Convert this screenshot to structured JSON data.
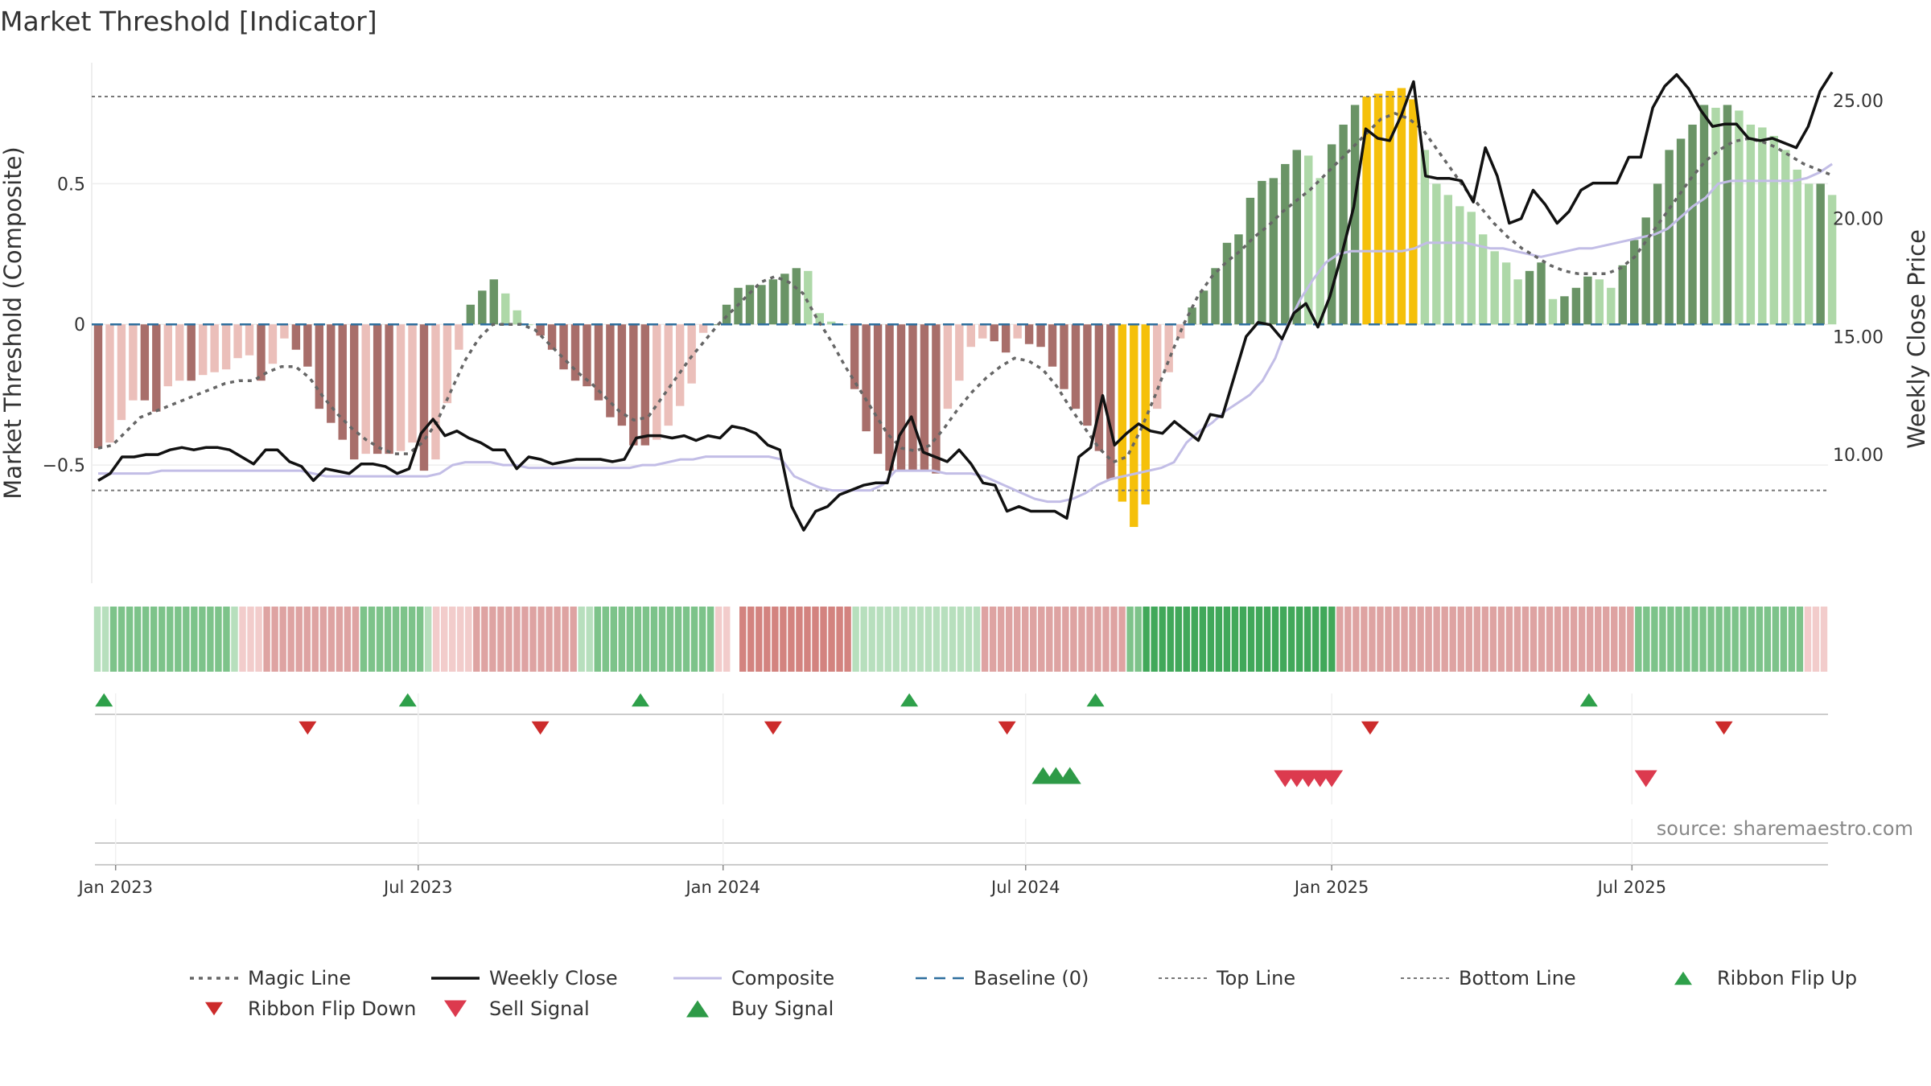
{
  "title": "Market Threshold [Indicator]",
  "source": "source: sharemaestro.com",
  "colors": {
    "pos_strong": "#6a9466",
    "pos_light": "#aed8a8",
    "neg_strong": "#a86e6a",
    "neg_light": "#ebbfba",
    "extreme": "#f5c00a",
    "magic": "#666666",
    "close": "#111111",
    "composite": "#c2bde6",
    "baseline": "#2e6f9e",
    "thresholds": "#777777",
    "ribbon_up": "#2ea04a",
    "flip_down": "#cc2b2b",
    "sell": "#dc3a4e",
    "buy": "#2e9a47"
  },
  "chart_data": {
    "type": "bar",
    "title": "Market Threshold [Indicator]",
    "ylabel": "Market Threshold (Composite)",
    "y2label": "Weekly Close Price",
    "ylim": [
      -0.92,
      0.93
    ],
    "y2lim": [
      4.55,
      26.6
    ],
    "yticks": [
      {
        "v": 0.5,
        "label": "0.5"
      },
      {
        "v": 0,
        "label": "0"
      },
      {
        "v": -0.5,
        "label": "−0.5"
      }
    ],
    "y2ticks": [
      {
        "v": 25,
        "label": "25.00"
      },
      {
        "v": 20,
        "label": "20.00"
      },
      {
        "v": 15,
        "label": "15.00"
      },
      {
        "v": 10,
        "label": "10.00"
      }
    ],
    "x_start": "2022-12-16",
    "x_step_days": 7,
    "xticks": [
      {
        "week": 1.5,
        "label": "Jan 2023"
      },
      {
        "week": 27.5,
        "label": "Jul 2023"
      },
      {
        "week": 53.7,
        "label": "Jan 2024"
      },
      {
        "week": 79.7,
        "label": "Jul 2024"
      },
      {
        "week": 106,
        "label": "Jan 2025"
      },
      {
        "week": 131.8,
        "label": "Jul 2025"
      }
    ],
    "top_line": 0.81,
    "bottom_line": -0.59,
    "baseline": 0,
    "composite_bars": [
      -0.44,
      -0.42,
      -0.34,
      -0.27,
      -0.27,
      -0.31,
      -0.22,
      -0.2,
      -0.2,
      -0.18,
      -0.17,
      -0.16,
      -0.12,
      -0.11,
      -0.2,
      -0.14,
      -0.05,
      -0.09,
      -0.15,
      -0.3,
      -0.35,
      -0.41,
      -0.48,
      -0.46,
      -0.46,
      -0.46,
      -0.45,
      -0.42,
      -0.52,
      -0.48,
      -0.28,
      -0.09,
      0.07,
      0.12,
      0.16,
      0.11,
      0.05,
      0,
      -0.04,
      -0.09,
      -0.16,
      -0.2,
      -0.22,
      -0.27,
      -0.33,
      -0.36,
      -0.43,
      -0.43,
      -0.41,
      -0.36,
      -0.29,
      -0.21,
      -0.03,
      0,
      0.07,
      0.13,
      0.14,
      0.14,
      0.16,
      0.18,
      0.2,
      0.19,
      0.04,
      0.01,
      0,
      -0.23,
      -0.38,
      -0.46,
      -0.52,
      -0.52,
      -0.52,
      -0.52,
      -0.53,
      -0.3,
      -0.2,
      -0.08,
      -0.05,
      -0.06,
      -0.1,
      -0.05,
      -0.07,
      -0.08,
      -0.15,
      -0.23,
      -0.3,
      -0.36,
      -0.45,
      -0.55,
      -0.63,
      -0.72,
      -0.64,
      -0.3,
      -0.17,
      -0.05,
      0.06,
      0.12,
      0.2,
      0.29,
      0.32,
      0.45,
      0.51,
      0.52,
      0.57,
      0.62,
      0.6,
      0.52,
      0.64,
      0.71,
      0.78,
      0.81,
      0.82,
      0.83,
      0.84,
      0.8,
      0.62,
      0.5,
      0.46,
      0.42,
      0.4,
      0.32,
      0.26,
      0.22,
      0.16,
      0.19,
      0.22,
      0.09,
      0.1,
      0.13,
      0.17,
      0.16,
      0.13,
      0.21,
      0.3,
      0.38,
      0.5,
      0.62,
      0.66,
      0.71,
      0.78,
      0.77,
      0.78,
      0.76,
      0.71,
      0.7,
      0.67,
      0.62,
      0.55,
      0.5,
      0.5,
      0.46
    ],
    "magic_line": [
      -0.44,
      -0.43,
      -0.38,
      -0.33,
      -0.31,
      -0.29,
      -0.27,
      -0.25,
      -0.23,
      -0.21,
      -0.2,
      -0.2,
      -0.17,
      -0.15,
      -0.15,
      -0.19,
      -0.26,
      -0.32,
      -0.37,
      -0.41,
      -0.44,
      -0.46,
      -0.46,
      -0.42,
      -0.35,
      -0.24,
      -0.13,
      -0.05,
      0.0,
      0.0,
      0.0,
      -0.02,
      -0.07,
      -0.12,
      -0.17,
      -0.21,
      -0.26,
      -0.31,
      -0.34,
      -0.33,
      -0.26,
      -0.19,
      -0.12,
      -0.06,
      0.0,
      0.05,
      0.1,
      0.15,
      0.17,
      0.15,
      0.11,
      0.02,
      -0.06,
      -0.15,
      -0.23,
      -0.31,
      -0.39,
      -0.44,
      -0.45,
      -0.43,
      -0.37,
      -0.3,
      -0.24,
      -0.19,
      -0.15,
      -0.12,
      -0.13,
      -0.16,
      -0.22,
      -0.3,
      -0.37,
      -0.44,
      -0.49,
      -0.47,
      -0.37,
      -0.25,
      -0.12,
      0.0,
      0.1,
      0.17,
      0.22,
      0.26,
      0.31,
      0.35,
      0.4,
      0.44,
      0.48,
      0.53,
      0.58,
      0.63,
      0.68,
      0.73,
      0.75,
      0.73,
      0.69,
      0.62,
      0.55,
      0.48,
      0.42,
      0.36,
      0.31,
      0.27,
      0.24,
      0.21,
      0.19,
      0.18,
      0.18,
      0.18,
      0.2,
      0.24,
      0.31,
      0.38,
      0.45,
      0.52,
      0.58,
      0.62,
      0.65,
      0.66,
      0.65,
      0.63,
      0.6,
      0.57,
      0.55,
      0.53
    ],
    "composite_line": [
      -0.53,
      -0.53,
      -0.53,
      -0.53,
      -0.53,
      -0.52,
      -0.52,
      -0.52,
      -0.52,
      -0.52,
      -0.52,
      -0.52,
      -0.52,
      -0.52,
      -0.52,
      -0.52,
      -0.52,
      -0.53,
      -0.54,
      -0.54,
      -0.54,
      -0.54,
      -0.54,
      -0.54,
      -0.54,
      -0.54,
      -0.54,
      -0.53,
      -0.5,
      -0.49,
      -0.49,
      -0.49,
      -0.5,
      -0.5,
      -0.51,
      -0.51,
      -0.51,
      -0.51,
      -0.51,
      -0.51,
      -0.51,
      -0.51,
      -0.51,
      -0.5,
      -0.5,
      -0.49,
      -0.48,
      -0.48,
      -0.47,
      -0.47,
      -0.47,
      -0.47,
      -0.47,
      -0.47,
      -0.48,
      -0.54,
      -0.56,
      -0.58,
      -0.59,
      -0.59,
      -0.59,
      -0.59,
      -0.57,
      -0.52,
      -0.52,
      -0.52,
      -0.52,
      -0.53,
      -0.53,
      -0.53,
      -0.54,
      -0.56,
      -0.58,
      -0.6,
      -0.62,
      -0.63,
      -0.63,
      -0.62,
      -0.6,
      -0.57,
      -0.55,
      -0.54,
      -0.53,
      -0.52,
      -0.51,
      -0.49,
      -0.42,
      -0.38,
      -0.35,
      -0.31,
      -0.28,
      -0.25,
      -0.2,
      -0.12,
      0.0,
      0.09,
      0.16,
      0.22,
      0.25,
      0.26,
      0.26,
      0.26,
      0.26,
      0.26,
      0.27,
      0.29,
      0.29,
      0.29,
      0.29,
      0.28,
      0.27,
      0.27,
      0.26,
      0.25,
      0.24,
      0.25,
      0.26,
      0.27,
      0.27,
      0.28,
      0.29,
      0.3,
      0.31,
      0.32,
      0.34,
      0.38,
      0.42,
      0.45,
      0.5,
      0.51,
      0.51,
      0.51,
      0.51,
      0.51,
      0.51,
      0.52,
      0.54,
      0.57
    ],
    "composite_line_start_week": 0,
    "composite_line_week_map": "scaled",
    "weekly_close": [
      8.9,
      9.2,
      9.9,
      9.9,
      10.0,
      10.0,
      10.2,
      10.3,
      10.2,
      10.3,
      10.3,
      10.2,
      9.9,
      9.6,
      10.2,
      10.2,
      9.7,
      9.5,
      8.9,
      9.4,
      9.3,
      9.2,
      9.6,
      9.6,
      9.5,
      9.2,
      9.4,
      10.9,
      11.5,
      10.8,
      11.0,
      10.7,
      10.5,
      10.2,
      10.2,
      9.4,
      9.9,
      9.8,
      9.6,
      9.7,
      9.8,
      9.8,
      9.8,
      9.7,
      9.8,
      10.7,
      10.8,
      10.8,
      10.7,
      10.8,
      10.6,
      10.8,
      10.7,
      11.2,
      11.1,
      10.9,
      10.4,
      10.2,
      7.8,
      6.8,
      7.6,
      7.8,
      8.3,
      8.5,
      8.7,
      8.8,
      8.8,
      10.8,
      11.6,
      10.1,
      9.9,
      9.7,
      10.2,
      9.6,
      8.8,
      8.7,
      7.6,
      7.8,
      7.6,
      7.6,
      7.6,
      7.3,
      9.9,
      10.3,
      12.5,
      10.4,
      10.9,
      11.3,
      11.0,
      10.9,
      11.4,
      11.0,
      10.6,
      11.7,
      11.6,
      13.3,
      15.0,
      15.6,
      15.5,
      14.9,
      16.0,
      16.4,
      15.4,
      16.7,
      18.5,
      20.5,
      23.8,
      23.4,
      23.3,
      24.4,
      25.8,
      21.8,
      21.7,
      21.7,
      21.6,
      20.7,
      23.0,
      21.8,
      19.8,
      20.0,
      21.2,
      20.6,
      19.8,
      20.3,
      21.2,
      21.5,
      21.5,
      21.5,
      22.6,
      22.6,
      24.7,
      25.6,
      26.1,
      25.5,
      24.6,
      23.9,
      24.0,
      24.0,
      23.4,
      23.3,
      23.4,
      23.2,
      23.0,
      23.9,
      25.4,
      26.2
    ],
    "ribbon": [
      1,
      1,
      2,
      2,
      2,
      2,
      2,
      2,
      2,
      2,
      2,
      2,
      2,
      2,
      2,
      2,
      2,
      1,
      -1,
      -1,
      -1,
      -2,
      -2,
      -2,
      -2,
      -2,
      -2,
      -2,
      -2,
      -2,
      -2,
      -2,
      -2,
      2,
      2,
      2,
      2,
      2,
      2,
      2,
      2,
      1,
      -1,
      -1,
      -1,
      -1,
      -1,
      -2,
      -2,
      -2,
      -2,
      -2,
      -2,
      -2,
      -2,
      -2,
      -2,
      -2,
      -2,
      -2,
      1,
      1,
      2,
      2,
      2,
      2,
      2,
      2,
      2,
      2,
      2,
      2,
      2,
      2,
      2,
      2,
      2,
      -1,
      -1,
      0,
      -3,
      -3,
      -3,
      -3,
      -3,
      -3,
      -3,
      -3,
      -3,
      -3,
      -3,
      -3,
      -3,
      -3,
      1,
      1,
      1,
      1,
      1,
      1,
      1,
      1,
      1,
      1,
      1,
      1,
      1,
      1,
      1,
      1,
      -2,
      -2,
      -2,
      -2,
      -2,
      -2,
      -2,
      -2,
      -2,
      -2,
      -2,
      -2,
      -2,
      -2,
      -2,
      -2,
      -2,
      -2,
      2,
      2,
      3,
      3,
      3,
      3,
      3,
      3,
      3,
      3,
      3,
      3,
      3,
      3,
      3,
      3,
      3,
      3,
      3,
      3,
      3,
      3,
      3,
      3,
      3,
      3,
      -2,
      -2,
      -2,
      -2,
      -2,
      -2,
      -2,
      -2,
      -2,
      -2,
      -2,
      -2,
      -2,
      -2,
      -2,
      -2,
      -2,
      -2,
      -2,
      -2,
      -2,
      -2,
      -2,
      -2,
      -2,
      -2,
      -2,
      -2,
      -2,
      -2,
      -2,
      -2,
      -2,
      -2,
      -2,
      -2,
      -2,
      2,
      2,
      2,
      2,
      2,
      2,
      2,
      2,
      2,
      2,
      2,
      2,
      2,
      2,
      2,
      2,
      2,
      2,
      2,
      2,
      2,
      -1,
      -1,
      -1
    ],
    "ribbon_flip_up_weeks": [
      0.5,
      26.6,
      46.6,
      69.7,
      85.7,
      128.1
    ],
    "ribbon_flip_down_weeks": [
      18.0,
      38.0,
      58.0,
      78.1,
      109.3,
      139.7
    ],
    "buy_signal_weeks": [
      81.2,
      82.3,
      83.5
    ],
    "sell_signal_weeks": [
      102.0,
      103.0,
      104.0,
      105.0,
      106.0,
      133.0
    ],
    "legend": [
      {
        "label": "Magic Line",
        "kind": "dotted",
        "color_key": "magic"
      },
      {
        "label": "Weekly Close",
        "kind": "solid",
        "color_key": "close"
      },
      {
        "label": "Composite",
        "kind": "solid-light",
        "color_key": "composite"
      },
      {
        "label": "Baseline (0)",
        "kind": "dashed",
        "color_key": "baseline"
      },
      {
        "label": "Top Line",
        "kind": "fine-dotted",
        "color_key": "thresholds"
      },
      {
        "label": "Bottom Line",
        "kind": "fine-dotted",
        "color_key": "thresholds"
      },
      {
        "label": "Ribbon Flip Up",
        "kind": "tri-up",
        "color_key": "ribbon_up"
      },
      {
        "label": "Ribbon Flip Down",
        "kind": "tri-down",
        "color_key": "flip_down"
      },
      {
        "label": "Sell Signal",
        "kind": "tri-down-big",
        "color_key": "sell"
      },
      {
        "label": "Buy Signal",
        "kind": "tri-up-big",
        "color_key": "buy"
      }
    ],
    "legend_placement": "bottom"
  }
}
